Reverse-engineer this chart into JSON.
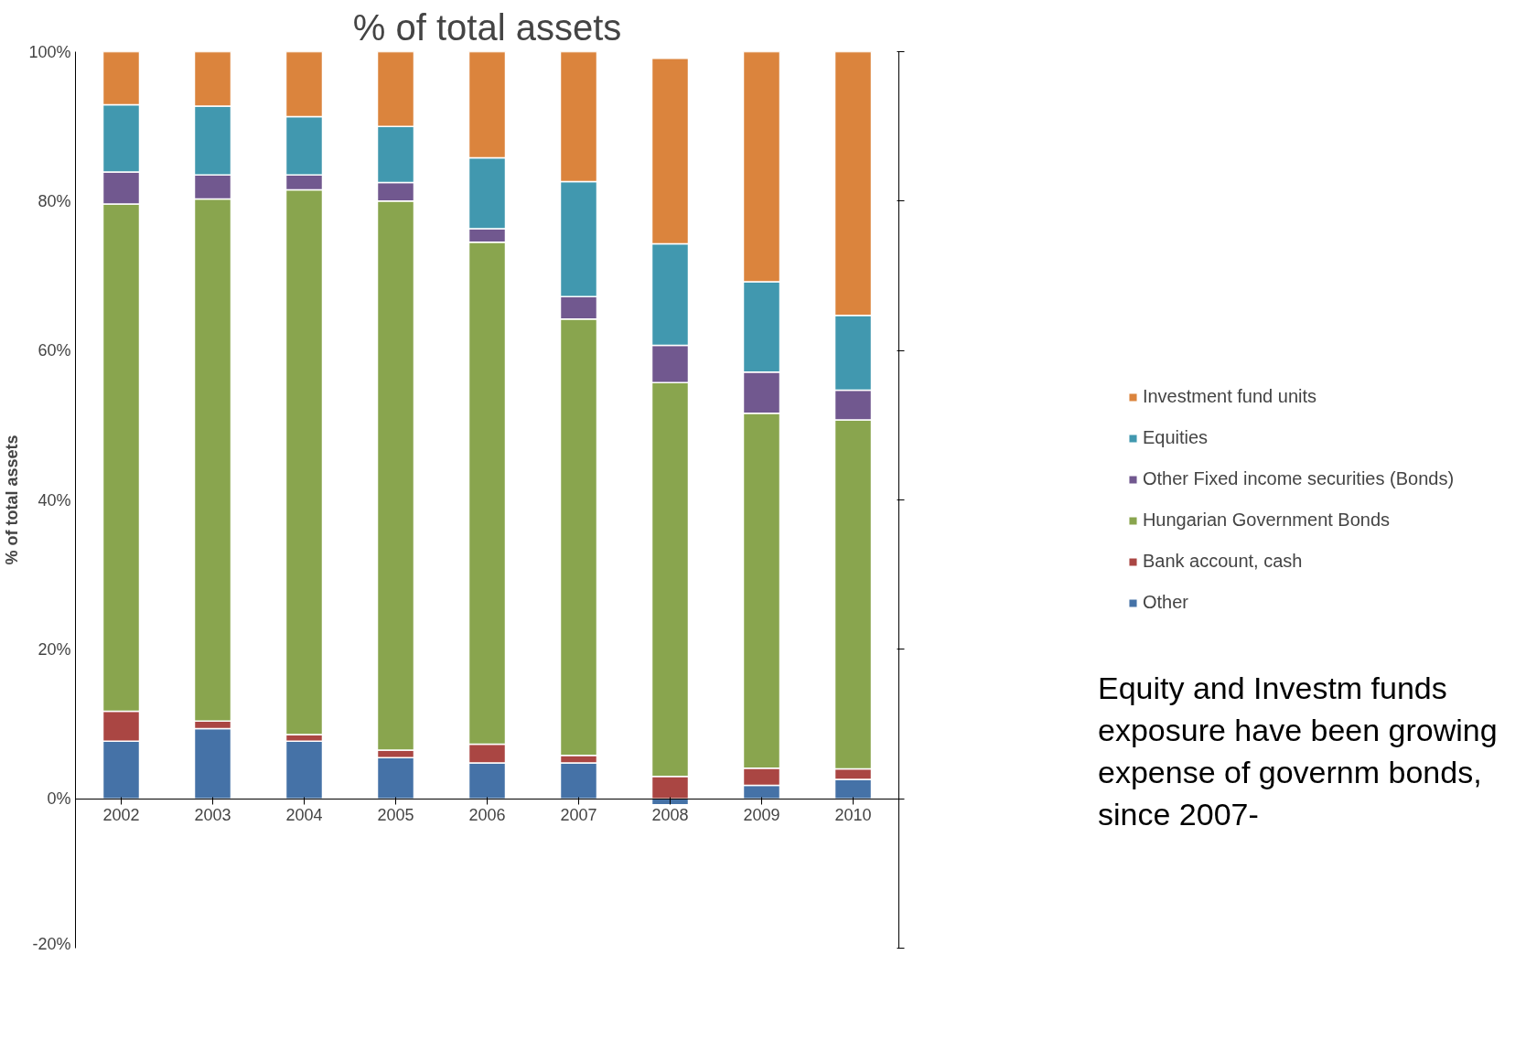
{
  "chart_data": {
    "type": "bar",
    "stacked": true,
    "title": "% of total assets",
    "ylabel": "% of total assets",
    "categories": [
      "2002",
      "2003",
      "2004",
      "2005",
      "2006",
      "2007",
      "2008",
      "2009",
      "2010"
    ],
    "series": [
      {
        "name": "Other",
        "color": "#4572a7",
        "values": [
          7.7,
          9.4,
          7.7,
          5.5,
          4.8,
          4.8,
          -0.8,
          1.8,
          2.6
        ]
      },
      {
        "name": "Bank account, cash",
        "color": "#aa4643",
        "values": [
          4.0,
          1.0,
          0.9,
          1.0,
          2.5,
          1.0,
          3.0,
          2.3,
          1.4
        ]
      },
      {
        "name": "Hungarian Government Bonds",
        "color": "#89a54e",
        "values": [
          67.9,
          69.9,
          72.9,
          73.5,
          67.2,
          58.4,
          52.7,
          47.5,
          46.7
        ]
      },
      {
        "name": "Other Fixed income securities (Bonds)",
        "color": "#71588f",
        "values": [
          4.3,
          3.2,
          2.0,
          2.5,
          1.8,
          3.0,
          5.0,
          5.5,
          4.0
        ]
      },
      {
        "name": "Equities",
        "color": "#4198af",
        "values": [
          9.0,
          9.2,
          7.8,
          7.5,
          9.5,
          15.4,
          13.6,
          12.1,
          10.0
        ]
      },
      {
        "name": "Investment fund units",
        "color": "#db843d",
        "values": [
          7.1,
          7.3,
          8.7,
          10.0,
          14.2,
          17.4,
          24.8,
          30.8,
          35.3
        ]
      }
    ],
    "ylim": [
      -20,
      100
    ],
    "yticks": [
      {
        "value": -20,
        "label": "-20%"
      },
      {
        "value": 0,
        "label": "0%"
      },
      {
        "value": 20,
        "label": "20%"
      },
      {
        "value": 40,
        "label": "40%"
      },
      {
        "value": 60,
        "label": "60%"
      },
      {
        "value": 80,
        "label": "80%"
      },
      {
        "value": 100,
        "label": "100%"
      }
    ],
    "grid": false,
    "legend": "right",
    "annotations": [
      "Equity and Investm funds exposure have been growing expense of governm bonds, since 2007-"
    ]
  }
}
